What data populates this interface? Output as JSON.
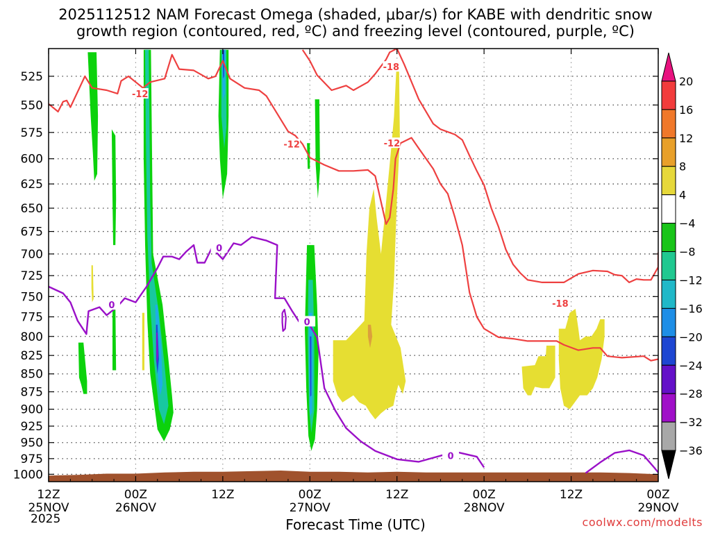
{
  "titles": {
    "line1": "2025112512 NAM Forecast Omega (shaded, μbar/s) for KABE with dendritic snow",
    "line2": "growth region (contoured, red, ºC) and freezing level (contoured, purple, ºC)"
  },
  "credit": "coolwx.com/modelts",
  "chart_data": {
    "type": "heatmap",
    "xlabel": "Forecast Time (UTC)",
    "x_range_hours": [
      0,
      84
    ],
    "x_ticks": [
      {
        "hour": 0,
        "label": "12Z",
        "date": "25NOV",
        "year": "2025"
      },
      {
        "hour": 12,
        "label": "00Z",
        "date": "26NOV"
      },
      {
        "hour": 24,
        "label": "12Z",
        "date": ""
      },
      {
        "hour": 36,
        "label": "00Z",
        "date": "27NOV"
      },
      {
        "hour": 48,
        "label": "12Z",
        "date": ""
      },
      {
        "hour": 60,
        "label": "00Z",
        "date": "28NOV"
      },
      {
        "hour": 72,
        "label": "12Z",
        "date": ""
      },
      {
        "hour": 84,
        "label": "00Z",
        "date": "29NOV"
      }
    ],
    "ylabel": "",
    "y_scale": "log-pressure",
    "y_range_mb": [
      1012,
      502
    ],
    "y_ticks": [
      525,
      550,
      575,
      600,
      625,
      650,
      675,
      700,
      725,
      750,
      775,
      800,
      825,
      850,
      875,
      900,
      925,
      950,
      975,
      1000
    ],
    "grid": true,
    "colorbar": {
      "labels": [
        "20",
        "16",
        "12",
        "8",
        "4",
        "−4",
        "−8",
        "−12",
        "−16",
        "−20",
        "−24",
        "−28",
        "−32",
        "−36"
      ],
      "colors": [
        "#e8127f",
        "#f23c3c",
        "#f0782a",
        "#e8a02a",
        "#e6d83a",
        "#ffffff",
        "#19c419",
        "#20c890",
        "#20b8c8",
        "#1e8ee6",
        "#1e46d2",
        "#6410c8",
        "#a00fc8",
        "#a8a8a8",
        "#000000"
      ]
    },
    "shading": {
      "green": "#0cd20c",
      "teal": "#18c8a0",
      "cyan": "#1eaee6",
      "blue": "#1e46d2",
      "purple": "#8c14c8",
      "yellow": "#e6de32",
      "orange": "#dca03c",
      "terrain": "#a0522d"
    },
    "contours": {
      "red_color": "#ee4040",
      "purple_color": "#9a10c8",
      "red_labels": [
        {
          "text": "-12",
          "hour": 12.6,
          "p": 540
        },
        {
          "text": "-12",
          "hour": 33.5,
          "p": 586
        },
        {
          "text": "-12",
          "hour": 47.3,
          "p": 585
        },
        {
          "text": "-18",
          "hour": 47.2,
          "p": 517
        },
        {
          "text": "-18",
          "hour": 70.5,
          "p": 758
        }
      ],
      "purple_labels": [
        {
          "text": "0",
          "hour": 23.5,
          "p": 693
        },
        {
          "text": "0",
          "hour": 8.7,
          "p": 760
        },
        {
          "text": "0",
          "hour": 35.6,
          "p": 781
        },
        {
          "text": "0",
          "hour": 55.4,
          "p": 970
        }
      ],
      "freezing_level": [
        [
          0,
          738
        ],
        [
          2,
          746
        ],
        [
          3,
          757
        ],
        [
          4,
          780
        ],
        [
          5.2,
          797
        ],
        [
          5.5,
          768
        ],
        [
          7,
          763
        ],
        [
          8,
          773
        ],
        [
          9.5,
          762
        ],
        [
          10.5,
          752
        ],
        [
          12,
          757
        ],
        [
          13.5,
          738
        ],
        [
          15,
          716
        ],
        [
          15.8,
          703
        ],
        [
          17,
          703
        ],
        [
          18,
          706
        ],
        [
          19,
          697
        ],
        [
          20,
          690
        ],
        [
          20.5,
          710
        ],
        [
          21.5,
          710
        ],
        [
          22.5,
          693
        ],
        [
          24,
          706
        ],
        [
          25.5,
          688
        ],
        [
          26.5,
          690
        ],
        [
          28,
          681
        ],
        [
          30,
          685
        ],
        [
          31.5,
          690
        ],
        [
          31.2,
          752
        ],
        [
          32.5,
          752
        ],
        [
          33.5,
          767
        ],
        [
          34.5,
          781
        ],
        [
          36,
          786
        ],
        [
          37,
          801
        ],
        [
          38,
          870
        ],
        [
          39.5,
          902
        ],
        [
          41,
          928
        ],
        [
          43,
          948
        ],
        [
          45,
          963
        ],
        [
          48,
          976
        ],
        [
          51,
          980
        ],
        [
          56,
          964
        ],
        [
          59,
          972
        ],
        [
          60,
          989
        ]
      ],
      "freezing_level_right": [
        [
          74,
          998
        ],
        [
          76,
          981
        ],
        [
          78,
          966
        ],
        [
          80,
          962
        ],
        [
          82,
          970
        ],
        [
          83.5,
          990
        ],
        [
          84,
          997
        ]
      ],
      "red_minus12": [
        [
          0,
          549
        ],
        [
          1.3,
          556
        ],
        [
          2,
          547
        ],
        [
          2.5,
          546
        ],
        [
          3,
          552
        ],
        [
          5,
          525
        ],
        [
          6,
          535
        ],
        [
          8,
          537
        ],
        [
          9.5,
          540
        ],
        [
          10,
          529
        ],
        [
          11,
          525
        ],
        [
          13,
          535
        ],
        [
          14,
          530
        ],
        [
          16,
          527
        ],
        [
          17,
          507
        ],
        [
          18,
          519
        ],
        [
          20,
          520
        ],
        [
          22,
          527
        ],
        [
          23,
          525
        ],
        [
          24,
          512
        ],
        [
          25,
          527
        ],
        [
          27,
          535
        ],
        [
          29,
          537
        ],
        [
          30,
          542
        ],
        [
          33,
          574
        ],
        [
          34,
          578
        ],
        [
          35,
          586
        ],
        [
          36,
          599
        ],
        [
          38,
          606
        ],
        [
          40,
          612
        ],
        [
          42,
          612
        ],
        [
          44,
          611
        ],
        [
          45,
          617
        ],
        [
          46,
          650
        ],
        [
          46.5,
          667
        ],
        [
          47,
          660
        ],
        [
          47.5,
          630
        ],
        [
          47.8,
          600
        ],
        [
          48.5,
          585
        ],
        [
          50,
          580
        ],
        [
          51,
          590
        ],
        [
          53,
          610
        ],
        [
          54,
          625
        ],
        [
          55,
          635
        ],
        [
          56,
          660
        ],
        [
          57,
          690
        ],
        [
          58,
          745
        ],
        [
          59,
          775
        ],
        [
          60,
          790
        ],
        [
          62,
          801
        ],
        [
          64,
          803
        ],
        [
          66,
          806
        ],
        [
          68,
          806
        ],
        [
          70,
          806
        ],
        [
          71,
          811
        ],
        [
          73,
          818
        ],
        [
          75,
          815
        ],
        [
          76,
          815
        ],
        [
          77,
          826
        ],
        [
          79,
          828
        ],
        [
          82,
          826
        ],
        [
          83,
          832
        ],
        [
          84,
          830
        ]
      ],
      "red_minus18": [
        [
          35,
          503
        ],
        [
          36,
          512
        ],
        [
          37,
          524
        ],
        [
          39,
          537
        ],
        [
          40,
          535
        ],
        [
          41,
          533
        ],
        [
          42,
          537
        ],
        [
          44,
          530
        ],
        [
          45,
          523
        ],
        [
          46.5,
          511
        ],
        [
          47,
          505
        ],
        [
          48,
          502
        ],
        [
          49,
          515
        ],
        [
          51,
          545
        ],
        [
          53,
          567
        ],
        [
          54,
          572
        ],
        [
          56,
          577
        ],
        [
          57,
          582
        ],
        [
          58,
          597
        ],
        [
          59,
          612
        ],
        [
          60,
          626
        ],
        [
          61,
          650
        ],
        [
          62,
          670
        ],
        [
          63,
          695
        ],
        [
          64,
          712
        ],
        [
          65,
          722
        ],
        [
          66,
          730
        ],
        [
          68,
          733
        ],
        [
          70,
          733
        ],
        [
          71,
          733
        ],
        [
          73,
          723
        ],
        [
          75,
          719
        ],
        [
          77,
          720
        ],
        [
          78,
          724
        ],
        [
          79,
          725
        ],
        [
          80,
          733
        ],
        [
          81,
          729
        ],
        [
          82,
          730
        ],
        [
          83,
          730
        ],
        [
          84,
          715
        ],
        [
          84,
          698
        ]
      ]
    }
  }
}
